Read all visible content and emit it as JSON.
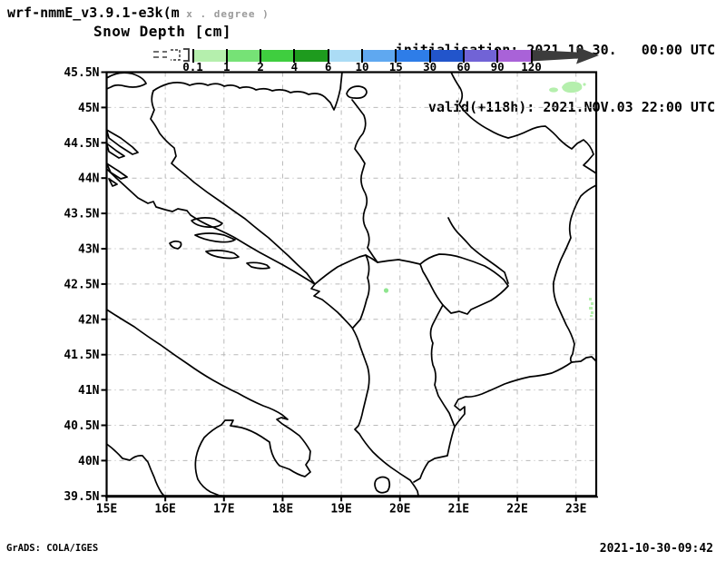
{
  "header": {
    "model": "wrf-nmmE_v3.9.1-e3k(m",
    "model_units": " x . degree )",
    "variable": "Snow Depth [cm]",
    "initialisation": "initialisation: 2021.10.30.   00:00 UTC",
    "valid": "valid(+118h): 2021.NOV.03 22:00 UTC"
  },
  "colorbar": {
    "labels": [
      "0.1",
      "1",
      "2",
      "4",
      "6",
      "10",
      "15",
      "30",
      "60",
      "90",
      "120"
    ],
    "thresholds": [
      0.1,
      1,
      2,
      4,
      6,
      10,
      15,
      30,
      60,
      90,
      120
    ],
    "colors": [
      "#b5efad",
      "#76e276",
      "#3fce3f",
      "#1e9b1e",
      "#abdcf5",
      "#5fa8f0",
      "#2e7de8",
      "#2255cb",
      "#7163d6",
      "#a962d8"
    ],
    "overflow_arrow_color": "#3c3c3c"
  },
  "axes": {
    "lat_labels": [
      "45.5N",
      "45N",
      "44.5N",
      "44N",
      "43.5N",
      "43N",
      "42.5N",
      "42N",
      "41.5N",
      "41N",
      "40.5N",
      "40N",
      "39.5N"
    ],
    "lon_labels": [
      "15E",
      "16E",
      "17E",
      "18E",
      "19E",
      "20E",
      "21E",
      "22E",
      "23E"
    ]
  },
  "map": {
    "line_color": "#000000",
    "grid_color": "#b9b9b9",
    "snow_color": "#b5efad",
    "snow_color_strong": "#8fe58f"
  },
  "footer": {
    "credit": "GrADS: COLA/IGES",
    "timestamp": "2021-10-30-09:42"
  }
}
